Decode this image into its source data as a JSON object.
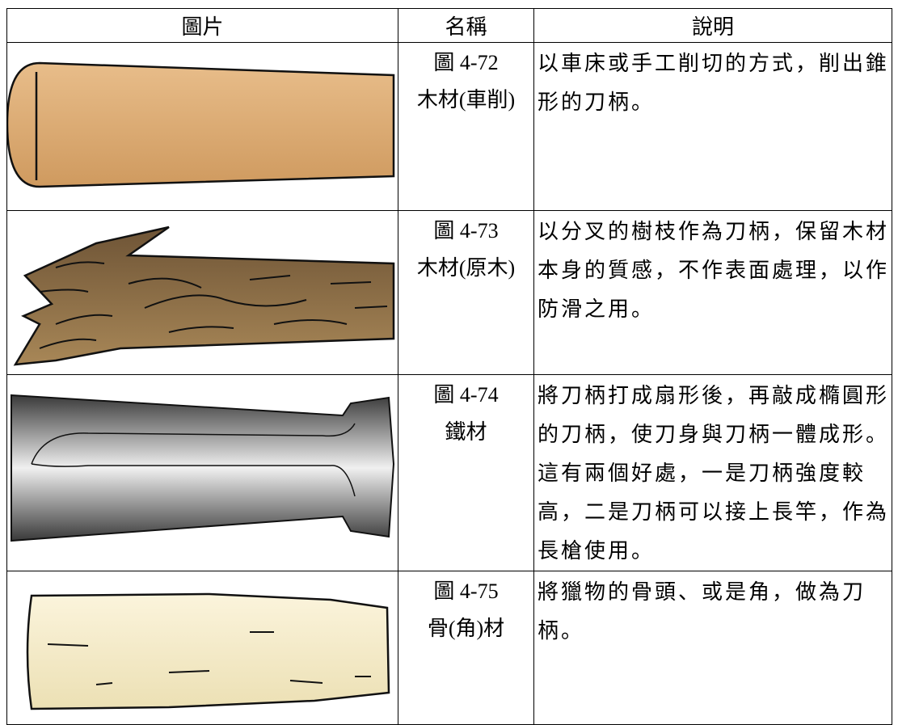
{
  "table": {
    "header": [
      "圖片",
      "名稱",
      "說明"
    ],
    "rows": [
      {
        "figure": "圖 4-72",
        "name": "木材(車削)",
        "description": "以車床或手工削切的方式，削出錐形的刀柄。"
      },
      {
        "figure": "圖 4-73",
        "name": "木材(原木)",
        "description": "以分叉的樹枝作為刀柄，保留木材本身的質感，不作表面處理，以作防滑之用。"
      },
      {
        "figure": "圖 4-74",
        "name": "鐵材",
        "description": "將刀柄打成扇形後，再敲成橢圓形的刀柄，使刀身與刀柄一體成形。這有兩個好處，一是刀柄強度較高，二是刀柄可以接上長竿，作為長槍使用。"
      },
      {
        "figure": "圖 4-75",
        "name": "骨(角)材",
        "description": "將獵物的骨頭、或是角，做為刀柄。"
      }
    ]
  }
}
